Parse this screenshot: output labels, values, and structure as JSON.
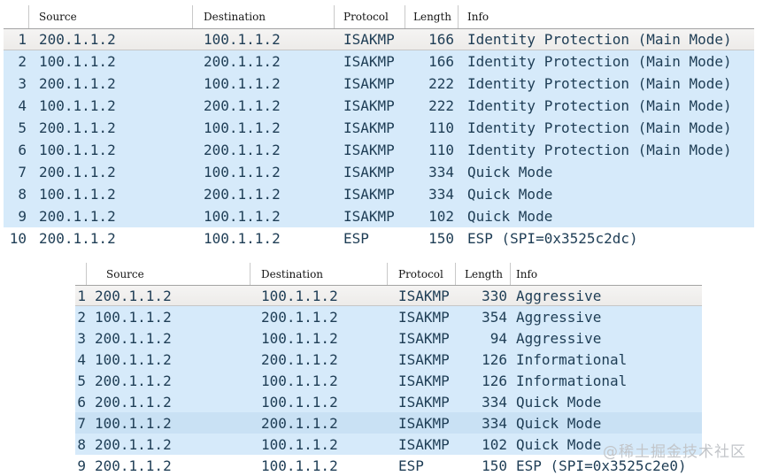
{
  "watermark": "@稀土掘金技术社区",
  "colors": {
    "row_blue": "#d6eafa",
    "row_highlight_blue": "#c9e1f4",
    "row_selected_gray": "#f1efed",
    "text": "#1e3d55",
    "header_separator": "#c9c9c9"
  },
  "tables": [
    {
      "id": "top",
      "columns": [
        "Source",
        "Destination",
        "Protocol",
        "Length",
        "Info"
      ],
      "rows": [
        {
          "no": "1",
          "source": "200.1.1.2",
          "destination": "100.1.1.2",
          "protocol": "ISAKMP",
          "length": "166",
          "info": "Identity Protection (Main Mode)",
          "state": "selected"
        },
        {
          "no": "2",
          "source": "100.1.1.2",
          "destination": "200.1.1.2",
          "protocol": "ISAKMP",
          "length": "166",
          "info": "Identity Protection (Main Mode)",
          "state": "blue"
        },
        {
          "no": "3",
          "source": "200.1.1.2",
          "destination": "100.1.1.2",
          "protocol": "ISAKMP",
          "length": "222",
          "info": "Identity Protection (Main Mode)",
          "state": "blue"
        },
        {
          "no": "4",
          "source": "100.1.1.2",
          "destination": "200.1.1.2",
          "protocol": "ISAKMP",
          "length": "222",
          "info": "Identity Protection (Main Mode)",
          "state": "blue"
        },
        {
          "no": "5",
          "source": "200.1.1.2",
          "destination": "100.1.1.2",
          "protocol": "ISAKMP",
          "length": "110",
          "info": "Identity Protection (Main Mode)",
          "state": "blue"
        },
        {
          "no": "6",
          "source": "100.1.1.2",
          "destination": "200.1.1.2",
          "protocol": "ISAKMP",
          "length": "110",
          "info": "Identity Protection (Main Mode)",
          "state": "blue"
        },
        {
          "no": "7",
          "source": "200.1.1.2",
          "destination": "100.1.1.2",
          "protocol": "ISAKMP",
          "length": "334",
          "info": "Quick Mode",
          "state": "blue"
        },
        {
          "no": "8",
          "source": "100.1.1.2",
          "destination": "200.1.1.2",
          "protocol": "ISAKMP",
          "length": "334",
          "info": "Quick Mode",
          "state": "blue"
        },
        {
          "no": "9",
          "source": "200.1.1.2",
          "destination": "100.1.1.2",
          "protocol": "ISAKMP",
          "length": "102",
          "info": "Quick Mode",
          "state": "blue"
        },
        {
          "no": "10",
          "source": "200.1.1.2",
          "destination": "100.1.1.2",
          "protocol": "ESP",
          "length": "150",
          "info": "ESP (SPI=0x3525c2dc)",
          "state": "plain"
        }
      ]
    },
    {
      "id": "bottom",
      "columns": [
        "Source",
        "Destination",
        "Protocol",
        "Length",
        "Info"
      ],
      "rows": [
        {
          "no": "1",
          "source": "200.1.1.2",
          "destination": "100.1.1.2",
          "protocol": "ISAKMP",
          "length": "330",
          "info": "Aggressive",
          "state": "selected"
        },
        {
          "no": "2",
          "source": "100.1.1.2",
          "destination": "200.1.1.2",
          "protocol": "ISAKMP",
          "length": "354",
          "info": "Aggressive",
          "state": "blue"
        },
        {
          "no": "3",
          "source": "200.1.1.2",
          "destination": "100.1.1.2",
          "protocol": "ISAKMP",
          "length": "94",
          "info": "Aggressive",
          "state": "blue"
        },
        {
          "no": "4",
          "source": "100.1.1.2",
          "destination": "200.1.1.2",
          "protocol": "ISAKMP",
          "length": "126",
          "info": "Informational",
          "state": "blue"
        },
        {
          "no": "5",
          "source": "200.1.1.2",
          "destination": "100.1.1.2",
          "protocol": "ISAKMP",
          "length": "126",
          "info": "Informational",
          "state": "blue"
        },
        {
          "no": "6",
          "source": "200.1.1.2",
          "destination": "100.1.1.2",
          "protocol": "ISAKMP",
          "length": "334",
          "info": "Quick Mode",
          "state": "blue"
        },
        {
          "no": "7",
          "source": "100.1.1.2",
          "destination": "200.1.1.2",
          "protocol": "ISAKMP",
          "length": "334",
          "info": "Quick Mode",
          "state": "highlight"
        },
        {
          "no": "8",
          "source": "200.1.1.2",
          "destination": "100.1.1.2",
          "protocol": "ISAKMP",
          "length": "102",
          "info": "Quick Mode",
          "state": "blue"
        },
        {
          "no": "9",
          "source": "200.1.1.2",
          "destination": "100.1.1.2",
          "protocol": "ESP",
          "length": "150",
          "info": "ESP (SPI=0x3525c2e0)",
          "state": "plain"
        }
      ]
    }
  ]
}
